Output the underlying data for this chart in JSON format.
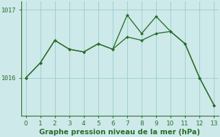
{
  "series1_x": [
    0,
    1,
    2,
    3,
    4,
    5,
    6,
    7,
    8,
    9,
    10,
    11,
    12,
    13
  ],
  "series1_y": [
    1016.0,
    1016.22,
    1016.55,
    1016.42,
    1016.38,
    1016.5,
    1016.42,
    1016.6,
    1016.55,
    1016.65,
    1016.68,
    1016.5,
    1016.0,
    1015.6
  ],
  "series2_x": [
    0,
    1,
    2,
    3,
    4,
    5,
    6,
    7,
    8,
    9,
    10,
    11,
    12,
    13
  ],
  "series2_y": [
    1016.0,
    1016.22,
    1016.55,
    1016.42,
    1016.38,
    1016.5,
    1016.42,
    1016.92,
    1016.65,
    1016.9,
    1016.68,
    1016.5,
    1016.0,
    1015.6
  ],
  "line_color": "#2a6e2a",
  "bg_color": "#cde9e9",
  "xlabel": "Graphe pression niveau de la mer (hPa)",
  "ylim_min": 1015.45,
  "ylim_max": 1017.12,
  "yticks": [
    1016,
    1017
  ],
  "xticks": [
    0,
    1,
    2,
    3,
    4,
    5,
    6,
    7,
    8,
    9,
    10,
    11,
    12,
    13
  ],
  "marker": "D",
  "markersize": 2.5,
  "linewidth": 1.0,
  "xlabel_fontsize": 7.5,
  "tick_fontsize": 6.5,
  "grid_color": "#9fcfcf",
  "grid_linewidth": 0.7
}
